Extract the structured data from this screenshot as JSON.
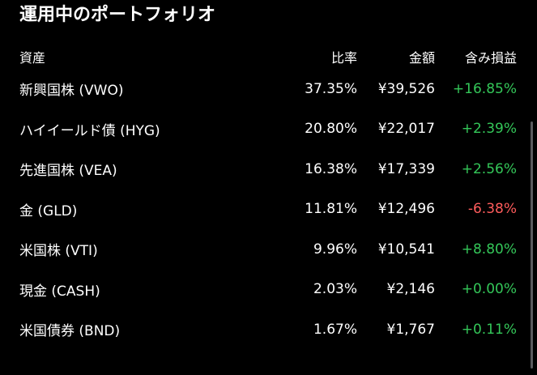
{
  "title": "運用中のポートフォリオ",
  "columns": {
    "asset": "資産",
    "ratio": "比率",
    "amount": "金額",
    "gain": "含み損益"
  },
  "rows": [
    {
      "name": "新興国株 (VWO)",
      "ratio": "37.35%",
      "amount": "¥39,526",
      "gain": "+16.85%",
      "trend": "positive"
    },
    {
      "name": "ハイイールド債 (HYG)",
      "ratio": "20.80%",
      "amount": "¥22,017",
      "gain": "+2.39%",
      "trend": "positive"
    },
    {
      "name": "先進国株 (VEA)",
      "ratio": "16.38%",
      "amount": "¥17,339",
      "gain": "+2.56%",
      "trend": "positive"
    },
    {
      "name": "金 (GLD)",
      "ratio": "11.81%",
      "amount": "¥12,496",
      "gain": "-6.38%",
      "trend": "negative"
    },
    {
      "name": "米国株 (VTI)",
      "ratio": "9.96%",
      "amount": "¥10,541",
      "gain": "+8.80%",
      "trend": "positive"
    },
    {
      "name": "現金 (CASH)",
      "ratio": "2.03%",
      "amount": "¥2,146",
      "gain": "+0.00%",
      "trend": "positive"
    },
    {
      "name": "米国債券 (BND)",
      "ratio": "1.67%",
      "amount": "¥1,767",
      "gain": "+0.11%",
      "trend": "positive"
    }
  ],
  "colors": {
    "background": "#000000",
    "text": "#ffffff",
    "positive": "#34c759",
    "negative": "#ff5c5c"
  }
}
